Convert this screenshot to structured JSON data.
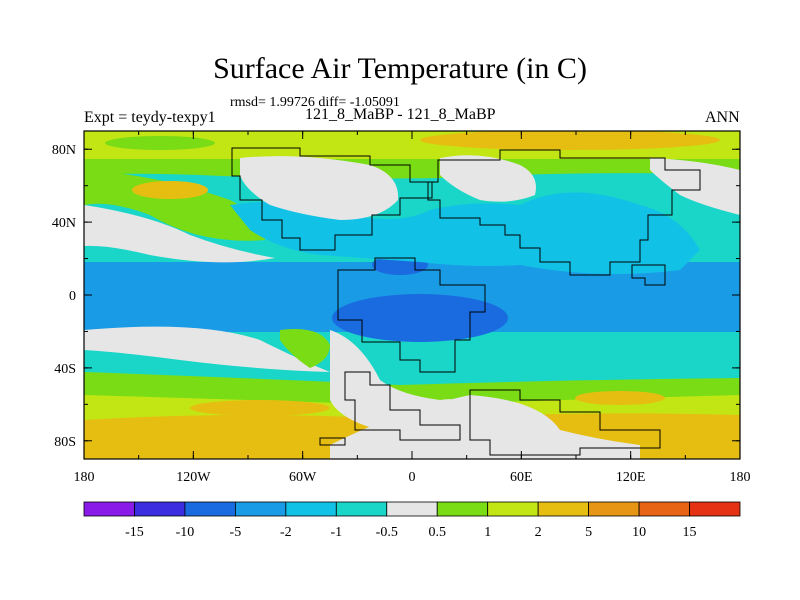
{
  "title": "Surface Air Temperature (in C)",
  "stats_line": "rmsd= 1.99726 diff= -1.05091",
  "experiment_label": "Expt = teydy-texpy1",
  "case_label": "121_8_MaBP - 121_8_MaBP",
  "season_label": "ANN",
  "map": {
    "projection": "cylindrical-equidistant",
    "lon_range": [
      -180,
      180
    ],
    "lat_range": [
      -90,
      90
    ],
    "x_ticks": [
      "180",
      "120W",
      "60W",
      "0",
      "60E",
      "120E",
      "180"
    ],
    "y_ticks": [
      "80N",
      "40N",
      "0",
      "40S",
      "80S"
    ]
  },
  "colorbar": {
    "labels": [
      "-15",
      "-10",
      "-5",
      "-2",
      "-1",
      "-0.5",
      "0.5",
      "1",
      "2",
      "5",
      "10",
      "15"
    ],
    "colors": [
      "#8a1ae8",
      "#3c2ee0",
      "#1a6be0",
      "#1a9be6",
      "#12c2e6",
      "#1ad6c8",
      "#e6e6e6",
      "#7adc14",
      "#c2e614",
      "#e6be12",
      "#e69614",
      "#e66414",
      "#e63214"
    ]
  }
}
